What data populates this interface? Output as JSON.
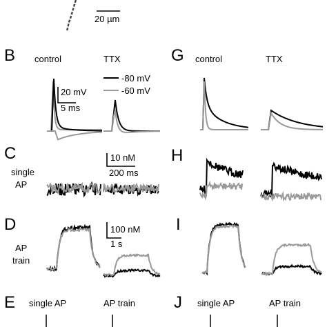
{
  "image": {
    "scale_bar": "20 µm"
  },
  "panels": [
    {
      "label": "B",
      "conditions": [
        "control",
        "TTX"
      ],
      "legend": [
        "-80 mV",
        "-60 mV"
      ],
      "scale_bars": [
        "20 mV",
        "5 ms"
      ]
    },
    {
      "label": "G",
      "conditions": [
        "control",
        "TTX"
      ]
    },
    {
      "label": "C",
      "row_label": [
        "single",
        "AP"
      ],
      "scale_bars": [
        "10 nM",
        "200 ms"
      ]
    },
    {
      "label": "H"
    },
    {
      "label": "D",
      "row_label": [
        "AP",
        "train"
      ],
      "scale_bars": [
        "100 nM",
        "1 s"
      ]
    },
    {
      "label": "I"
    },
    {
      "label": "E",
      "conditions": [
        "single AP",
        "AP train"
      ]
    },
    {
      "label": "J",
      "conditions": [
        "single AP",
        "AP train"
      ]
    }
  ]
}
